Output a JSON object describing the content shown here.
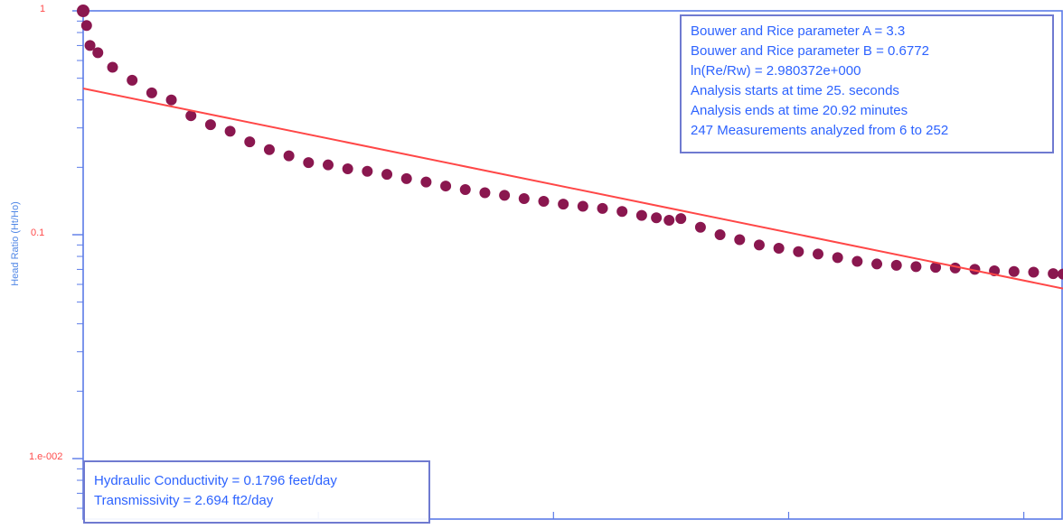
{
  "chart_data": {
    "type": "scatter",
    "title": "",
    "xlabel": "",
    "ylabel": "Head Ratio (Ht/Ho)",
    "yscale": "log",
    "ylim": [
      0.005,
      1
    ],
    "ytick_labels": [
      {
        "value": 1,
        "label": "1"
      },
      {
        "value": 0.1,
        "label": "0.1"
      },
      {
        "value": 0.01,
        "label": "1.e-002"
      }
    ],
    "xlim": [
      0,
      1
    ],
    "series": [
      {
        "color": "#8a174f",
        "x": [
          0,
          0.0035,
          0.007,
          0.015,
          0.03,
          0.05,
          0.07,
          0.09,
          0.11,
          0.13,
          0.15,
          0.17,
          0.19,
          0.21,
          0.23,
          0.25,
          0.27,
          0.29,
          0.31,
          0.33,
          0.35,
          0.37,
          0.39,
          0.41,
          0.43,
          0.45,
          0.47,
          0.49,
          0.51,
          0.53,
          0.55,
          0.57,
          0.585,
          0.598,
          0.61,
          0.63,
          0.65,
          0.67,
          0.69,
          0.71,
          0.73,
          0.75,
          0.77,
          0.79,
          0.81,
          0.83,
          0.85,
          0.87,
          0.89,
          0.91,
          0.93,
          0.95,
          0.97,
          0.99,
          1
        ],
        "y": [
          1.0,
          0.86,
          0.7,
          0.65,
          0.56,
          0.49,
          0.43,
          0.4,
          0.34,
          0.31,
          0.29,
          0.26,
          0.24,
          0.225,
          0.21,
          0.205,
          0.197,
          0.192,
          0.186,
          0.178,
          0.172,
          0.165,
          0.159,
          0.154,
          0.15,
          0.145,
          0.141,
          0.137,
          0.134,
          0.131,
          0.127,
          0.122,
          0.119,
          0.116,
          0.118,
          0.108,
          0.1,
          0.095,
          0.09,
          0.087,
          0.084,
          0.082,
          0.079,
          0.076,
          0.074,
          0.073,
          0.072,
          0.0715,
          0.071,
          0.07,
          0.069,
          0.0685,
          0.068,
          0.067,
          0.0667
        ]
      },
      {
        "type": "line",
        "color": "#ff4747",
        "x": [
          0,
          1
        ],
        "y": [
          0.45,
          0.0575
        ]
      }
    ]
  },
  "annotations": {
    "top_box": [
      "Bouwer and Rice parameter A = 3.3",
      "Bouwer and Rice parameter B = 0.6772",
      "ln(Re/Rw) = 2.980372e+000",
      "Analysis starts at time 25. seconds",
      "Analysis ends at time 20.92 minutes",
      "247 Measurements analyzed from 6 to 252"
    ],
    "bottom_box": [
      "Hydraulic Conductivity = 0.1796 feet/day",
      "Transmissivity = 2.694 ft2/day"
    ]
  },
  "style": {
    "axis_color": "#5b7be8",
    "tick_label_color": "#ff4b4b",
    "marker_color": "#8a174f",
    "fit_line_color": "#ff4747",
    "annotation_text_color": "#2d63ff"
  }
}
